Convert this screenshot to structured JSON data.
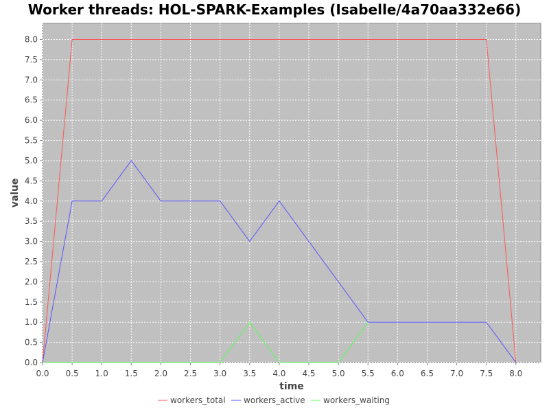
{
  "chart_data": {
    "type": "line",
    "title": "Worker threads: HOL-SPARK-Examples (Isabelle/4a70aa332e66)",
    "xlabel": "time",
    "ylabel": "value",
    "xlim": [
      0.0,
      8.42
    ],
    "ylim": [
      0.0,
      8.4
    ],
    "x_ticks": [
      "0.0",
      "0.5",
      "1.0",
      "1.5",
      "2.0",
      "2.5",
      "3.0",
      "3.5",
      "4.0",
      "4.5",
      "5.0",
      "5.5",
      "6.0",
      "6.5",
      "7.0",
      "7.5",
      "8.0"
    ],
    "y_ticks": [
      "0.0",
      "0.5",
      "1.0",
      "1.5",
      "2.0",
      "2.5",
      "3.0",
      "3.5",
      "4.0",
      "4.5",
      "5.0",
      "5.5",
      "6.0",
      "6.5",
      "7.0",
      "7.5",
      "8.0"
    ],
    "grid": true,
    "legend_position": "bottom",
    "series": [
      {
        "name": "workers_total",
        "color": "#ff5555",
        "points": [
          [
            0.0,
            0
          ],
          [
            0.5,
            8
          ],
          [
            7.5,
            8
          ],
          [
            8.0,
            0
          ]
        ]
      },
      {
        "name": "workers_active",
        "color": "#5555ff",
        "points": [
          [
            0.0,
            0
          ],
          [
            0.5,
            4
          ],
          [
            1.0,
            4
          ],
          [
            1.5,
            5
          ],
          [
            2.0,
            4
          ],
          [
            3.0,
            4
          ],
          [
            3.5,
            3
          ],
          [
            4.0,
            4
          ],
          [
            5.5,
            1
          ],
          [
            7.5,
            1
          ],
          [
            8.0,
            0
          ]
        ]
      },
      {
        "name": "workers_waiting",
        "color": "#55ff55",
        "points": [
          [
            0.0,
            0
          ],
          [
            3.0,
            0
          ],
          [
            3.5,
            1
          ],
          [
            4.0,
            0
          ],
          [
            5.0,
            0
          ],
          [
            5.5,
            1
          ]
        ]
      }
    ]
  },
  "colors": {
    "plot_background": "#c0c0c0",
    "grid": "#ffffff",
    "text": "#444444"
  }
}
